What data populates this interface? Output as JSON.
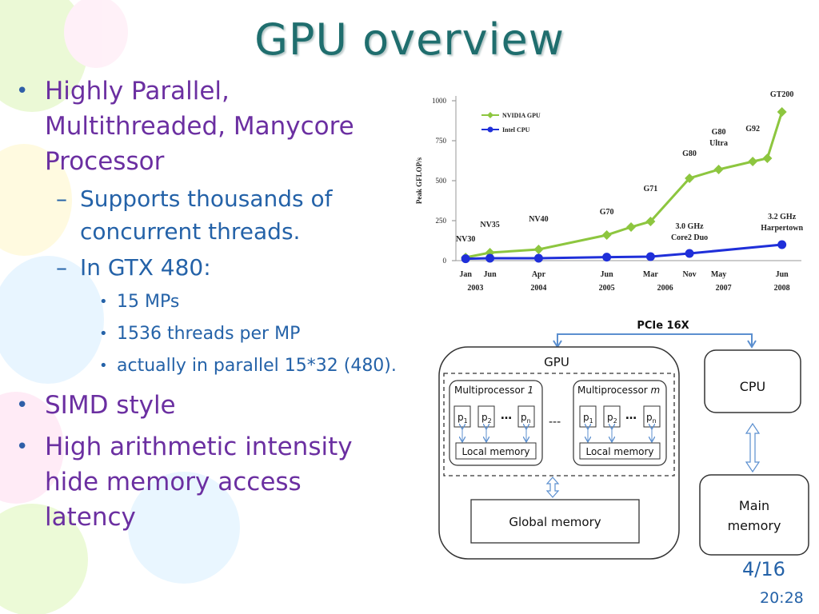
{
  "slide": {
    "title": "GPU overview",
    "page": "4/16",
    "time": "20:28"
  },
  "bullets": {
    "b1": "Highly Parallel, Multithreaded, Manycore Processor",
    "b1_sub1": "Supports thousands  of concurrent threads.",
    "b1_sub2": "In GTX 480:",
    "b1_sub2_items": [
      "15 MPs",
      "1536 threads per MP",
      " actually in parallel 15*32 (480)."
    ],
    "b2": "SIMD style",
    "b3": "High arithmetic intensity hide memory access latency"
  },
  "chart_data": {
    "type": "line",
    "ylabel": "Peak GFLOP/s",
    "ylim": [
      0,
      1000
    ],
    "yticks": [
      "0",
      "250",
      "500",
      "750",
      "1000"
    ],
    "x_tick_months": [
      "Jan",
      "Jun",
      "Apr",
      "Jun",
      "Mar",
      "Nov",
      "May",
      "Jun"
    ],
    "x_tick_years": [
      "2003",
      "2004",
      "2005",
      "2006",
      "2007",
      "2008"
    ],
    "legend": [
      "NVIDIA GPU",
      "Intel CPU"
    ],
    "legend_position": "top-left",
    "series": [
      {
        "name": "NVIDIA GPU",
        "color": "#8dc63f",
        "values": [
          {
            "x": "2003-01",
            "y": 20
          },
          {
            "x": "2003-06",
            "y": 50
          },
          {
            "x": "2004-04",
            "y": 70
          },
          {
            "x": "2005-06",
            "y": 160
          },
          {
            "x": "2005-11",
            "y": 210
          },
          {
            "x": "2006-03",
            "y": 245
          },
          {
            "x": "2006-11",
            "y": 515
          },
          {
            "x": "2007-05",
            "y": 570
          },
          {
            "x": "2007-12",
            "y": 620
          },
          {
            "x": "2008-03",
            "y": 640
          },
          {
            "x": "2008-06",
            "y": 930
          }
        ]
      },
      {
        "name": "Intel CPU",
        "color": "#1f2fd9",
        "values": [
          {
            "x": "2003-01",
            "y": 12
          },
          {
            "x": "2003-06",
            "y": 15
          },
          {
            "x": "2004-04",
            "y": 15
          },
          {
            "x": "2005-06",
            "y": 22
          },
          {
            "x": "2006-03",
            "y": 25
          },
          {
            "x": "2006-11",
            "y": 45
          },
          {
            "x": "2008-06",
            "y": 100
          }
        ]
      }
    ],
    "annotations": [
      {
        "text": "NV30",
        "x": "2003-01",
        "y": 120
      },
      {
        "text": "NV35",
        "x": "2003-06",
        "y": 210
      },
      {
        "text": "NV40",
        "x": "2004-04",
        "y": 245
      },
      {
        "text": "G70",
        "x": "2005-06",
        "y": 290
      },
      {
        "text": "G71",
        "x": "2006-03",
        "y": 435
      },
      {
        "text": "G80",
        "x": "2006-11",
        "y": 655
      },
      {
        "text": "G80",
        "x": "2007-05",
        "y": 790
      },
      {
        "text": "Ultra",
        "x": "2007-05",
        "y": 720
      },
      {
        "text": "G92",
        "x": "2007-12",
        "y": 810
      },
      {
        "text": "GT200",
        "x": "2008-06",
        "y": 1025
      },
      {
        "text": "3.0 GHz",
        "x": "2006-11",
        "y": 200
      },
      {
        "text": "Core2 Duo",
        "x": "2006-11",
        "y": 130
      },
      {
        "text": "3.2 GHz",
        "x": "2008-06",
        "y": 260
      },
      {
        "text": "Harpertown",
        "x": "2008-06",
        "y": 190
      }
    ]
  },
  "diagram": {
    "bus": "PCIe 16X",
    "gpu": "GPU",
    "mp1": "Multiprocessor ",
    "mp1_index": "1",
    "mpm": "Multiprocessor ",
    "mpm_index": "m",
    "p1": "p",
    "p1_sub": "1",
    "p2": "p",
    "p2_sub": "2",
    "pn": "p",
    "pn_sub": "n",
    "ellipsis": "…",
    "dashes": "---",
    "local_memory": "Local memory",
    "global_memory": "Global memory",
    "cpu": "CPU",
    "main_memory_1": "Main",
    "main_memory_2": "memory"
  }
}
